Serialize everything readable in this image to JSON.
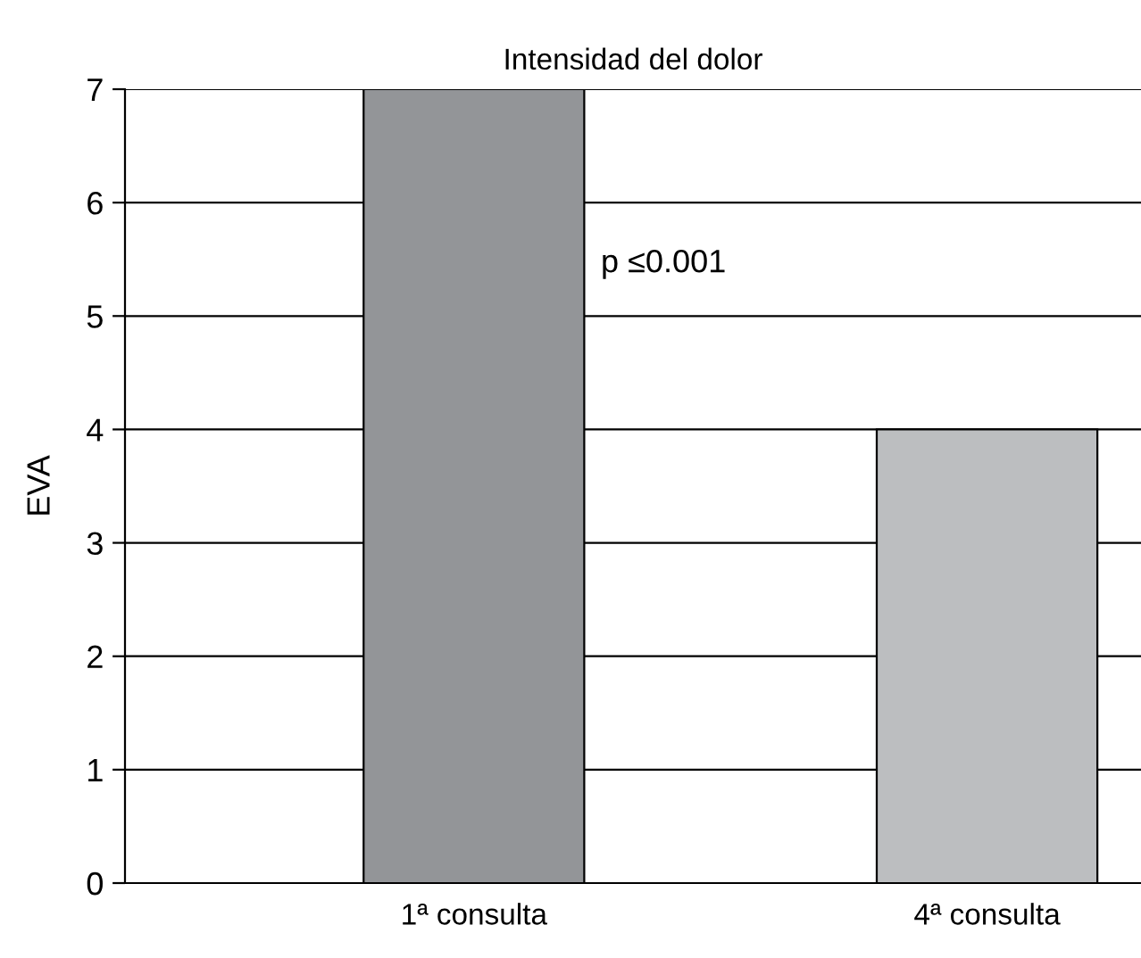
{
  "chart_data": {
    "type": "bar",
    "title": "Intensidad del dolor",
    "ylabel": "EVA",
    "categories": [
      "1ª consulta",
      "4ª consulta"
    ],
    "values": [
      7,
      4
    ],
    "colors": [
      "#939598",
      "#bcbec0"
    ],
    "ylim": [
      0,
      7
    ],
    "yticks": [
      0,
      1,
      2,
      3,
      4,
      5,
      6,
      7
    ],
    "grid": "y",
    "legend": false,
    "annotations": [
      "p ≤0.001"
    ]
  }
}
